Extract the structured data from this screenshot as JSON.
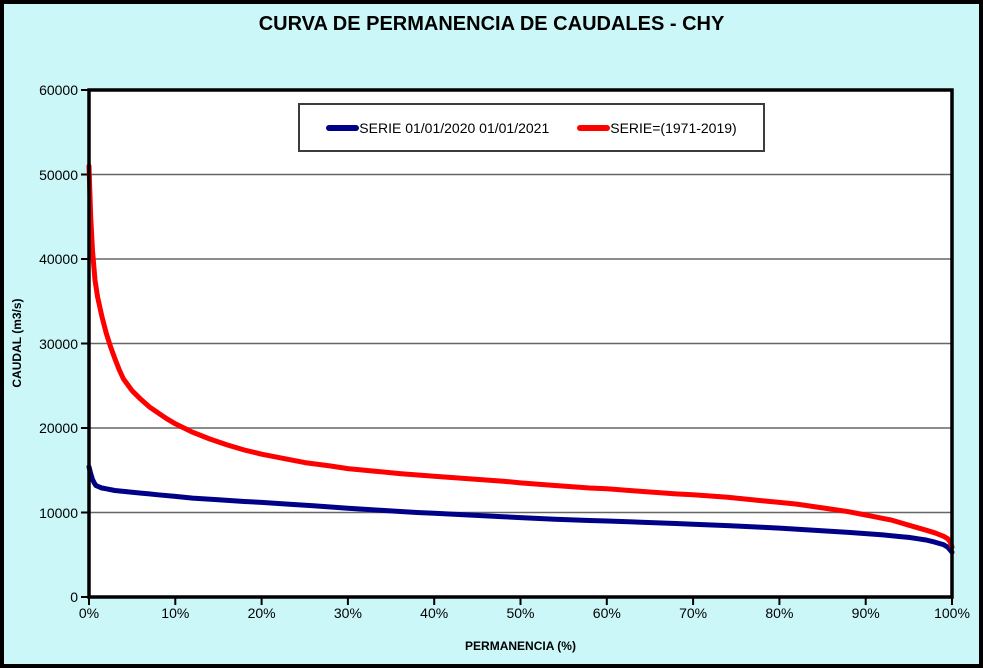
{
  "window": {
    "background_color": "#CBF7F9",
    "frame_color": "#000000",
    "plot_background": "#FFFFFF",
    "gridline_color": "#666666"
  },
  "chart_data": {
    "type": "line",
    "title": "CURVA DE PERMANENCIA DE CAUDALES - CHY",
    "xlabel": "PERMANENCIA  (%)",
    "ylabel": "CAUDAL  (m3/s)",
    "xlim": [
      0,
      100
    ],
    "ylim": [
      0,
      60000
    ],
    "grid": "horizontal",
    "legend_position": "top-center-inside",
    "x_ticks": [
      {
        "label": "0%",
        "value": 0
      },
      {
        "label": "10%",
        "value": 10
      },
      {
        "label": "20%",
        "value": 20
      },
      {
        "label": "30%",
        "value": 30
      },
      {
        "label": "40%",
        "value": 40
      },
      {
        "label": "50%",
        "value": 50
      },
      {
        "label": "60%",
        "value": 60
      },
      {
        "label": "70%",
        "value": 70
      },
      {
        "label": "80%",
        "value": 80
      },
      {
        "label": "90%",
        "value": 90
      },
      {
        "label": "100%",
        "value": 100
      }
    ],
    "y_ticks": [
      {
        "label": "0",
        "value": 0
      },
      {
        "label": "10000",
        "value": 10000
      },
      {
        "label": "20000",
        "value": 20000
      },
      {
        "label": "30000",
        "value": 30000
      },
      {
        "label": "40000",
        "value": 40000
      },
      {
        "label": "50000",
        "value": 50000
      },
      {
        "label": "60000",
        "value": 60000
      }
    ],
    "series": [
      {
        "name": "SERIE 01/01/2020 01/01/2021",
        "color": "#000088",
        "points": [
          [
            0,
            15400
          ],
          [
            0.2,
            14600
          ],
          [
            0.4,
            13900
          ],
          [
            0.6,
            13500
          ],
          [
            0.8,
            13200
          ],
          [
            1,
            13100
          ],
          [
            1.5,
            12900
          ],
          [
            2,
            12800
          ],
          [
            3,
            12600
          ],
          [
            4,
            12500
          ],
          [
            5,
            12400
          ],
          [
            6,
            12300
          ],
          [
            7,
            12200
          ],
          [
            8,
            12100
          ],
          [
            10,
            11900
          ],
          [
            12,
            11700
          ],
          [
            15,
            11500
          ],
          [
            18,
            11300
          ],
          [
            20,
            11200
          ],
          [
            23,
            11000
          ],
          [
            26,
            10800
          ],
          [
            30,
            10500
          ],
          [
            34,
            10250
          ],
          [
            38,
            10000
          ],
          [
            40,
            9900
          ],
          [
            44,
            9700
          ],
          [
            48,
            9500
          ],
          [
            50,
            9400
          ],
          [
            54,
            9200
          ],
          [
            58,
            9050
          ],
          [
            60,
            9000
          ],
          [
            64,
            8850
          ],
          [
            68,
            8700
          ],
          [
            70,
            8600
          ],
          [
            74,
            8450
          ],
          [
            78,
            8250
          ],
          [
            80,
            8150
          ],
          [
            84,
            7900
          ],
          [
            88,
            7650
          ],
          [
            90,
            7500
          ],
          [
            92,
            7350
          ],
          [
            94,
            7150
          ],
          [
            95,
            7050
          ],
          [
            96,
            6900
          ],
          [
            97,
            6750
          ],
          [
            98,
            6500
          ],
          [
            99,
            6200
          ],
          [
            99.5,
            5900
          ],
          [
            100,
            5300
          ]
        ]
      },
      {
        "name": "SERIE=(1971-2019)",
        "color": "#FF0000",
        "points": [
          [
            0,
            51000
          ],
          [
            0.2,
            45000
          ],
          [
            0.4,
            41000
          ],
          [
            0.7,
            37500
          ],
          [
            1,
            35500
          ],
          [
            1.5,
            33200
          ],
          [
            2,
            31200
          ],
          [
            2.5,
            29600
          ],
          [
            3,
            28200
          ],
          [
            3.5,
            26900
          ],
          [
            4,
            25800
          ],
          [
            5,
            24400
          ],
          [
            6,
            23400
          ],
          [
            7,
            22500
          ],
          [
            8,
            21800
          ],
          [
            9,
            21100
          ],
          [
            10,
            20500
          ],
          [
            12,
            19500
          ],
          [
            14,
            18700
          ],
          [
            16,
            18000
          ],
          [
            18,
            17400
          ],
          [
            20,
            16900
          ],
          [
            22,
            16500
          ],
          [
            25,
            15900
          ],
          [
            28,
            15500
          ],
          [
            30,
            15200
          ],
          [
            33,
            14900
          ],
          [
            36,
            14600
          ],
          [
            40,
            14300
          ],
          [
            44,
            14000
          ],
          [
            48,
            13700
          ],
          [
            50,
            13500
          ],
          [
            54,
            13200
          ],
          [
            58,
            12900
          ],
          [
            60,
            12800
          ],
          [
            64,
            12500
          ],
          [
            68,
            12200
          ],
          [
            70,
            12100
          ],
          [
            74,
            11800
          ],
          [
            78,
            11400
          ],
          [
            80,
            11200
          ],
          [
            82,
            11000
          ],
          [
            84,
            10700
          ],
          [
            86,
            10400
          ],
          [
            88,
            10100
          ],
          [
            90,
            9700
          ],
          [
            91,
            9500
          ],
          [
            92,
            9300
          ],
          [
            93,
            9100
          ],
          [
            94,
            8800
          ],
          [
            95,
            8500
          ],
          [
            96,
            8200
          ],
          [
            97,
            7900
          ],
          [
            98,
            7600
          ],
          [
            99,
            7200
          ],
          [
            99.5,
            6900
          ],
          [
            99.8,
            6500
          ],
          [
            100,
            5900
          ]
        ]
      }
    ]
  }
}
